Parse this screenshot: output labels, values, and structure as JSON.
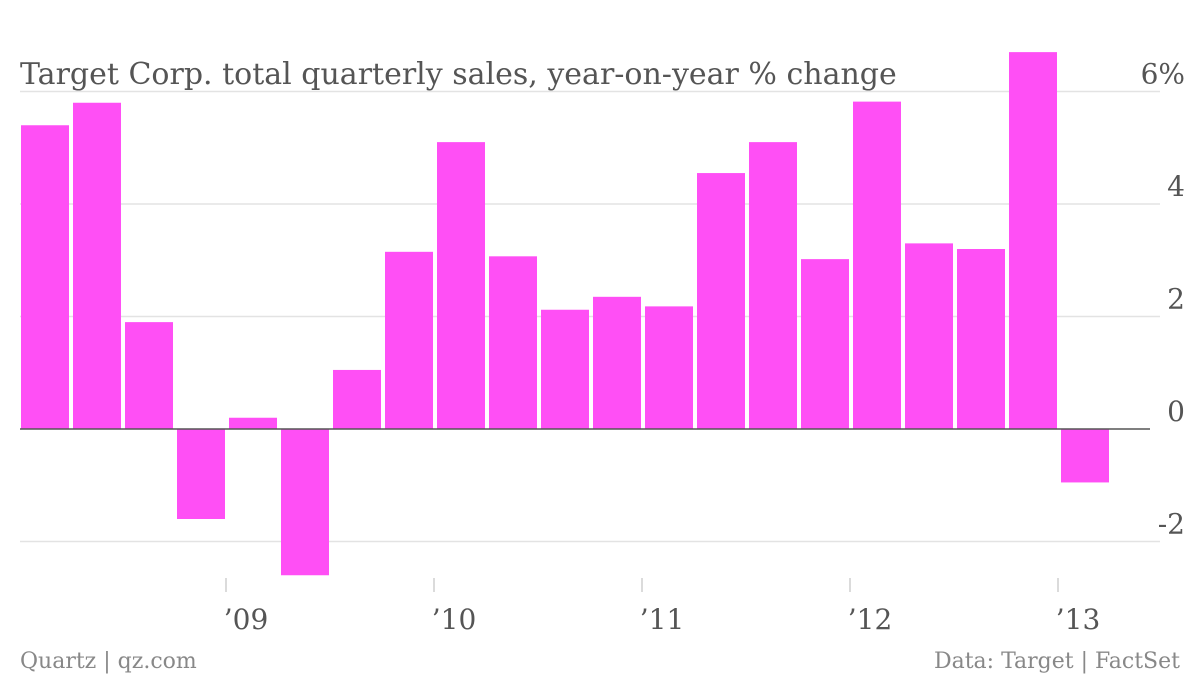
{
  "chart_data": {
    "type": "bar",
    "title": "Target Corp. total quarterly sales, year-on-year % change",
    "xlabel": "",
    "ylabel": "",
    "color": "#ff4ff5",
    "ylim": [
      -2.8,
      6.8
    ],
    "yticks": [
      {
        "value": 6,
        "label": "6%"
      },
      {
        "value": 4,
        "label": "4"
      },
      {
        "value": 2,
        "label": "2"
      },
      {
        "value": 0,
        "label": "0"
      },
      {
        "value": -2,
        "label": "-2"
      }
    ],
    "xticks": [
      {
        "index": 3.5,
        "label": "’09"
      },
      {
        "index": 7.5,
        "label": "’10"
      },
      {
        "index": 11.5,
        "label": "’11"
      },
      {
        "index": 15.5,
        "label": "’12"
      },
      {
        "index": 19.5,
        "label": "’13"
      }
    ],
    "values": [
      5.4,
      5.8,
      1.9,
      -1.6,
      0.2,
      -2.6,
      1.05,
      3.15,
      5.1,
      3.07,
      2.12,
      2.35,
      2.18,
      4.55,
      5.1,
      3.02,
      5.82,
      3.3,
      3.2,
      6.7,
      -0.95
    ],
    "grid": true
  },
  "footer": {
    "left": "Quartz | qz.com",
    "right": "Data: Target | FactSet"
  }
}
